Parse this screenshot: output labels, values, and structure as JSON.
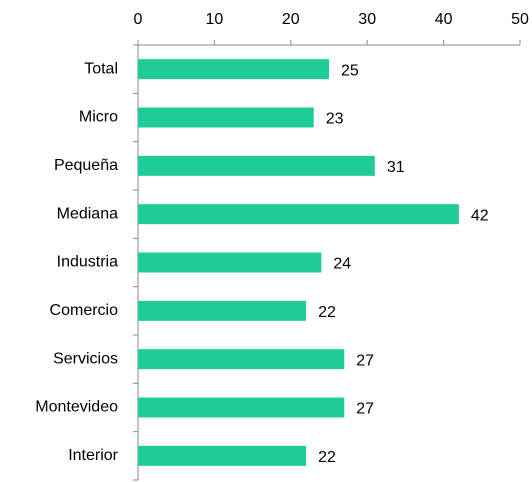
{
  "chart_data": {
    "type": "bar",
    "orientation": "horizontal",
    "categories": [
      "Total",
      "Micro",
      "Pequeña",
      "Mediana",
      "Industria",
      "Comercio",
      "Servicios",
      "Montevideo",
      "Interior"
    ],
    "values": [
      25,
      23,
      31,
      42,
      24,
      22,
      27,
      27,
      22
    ],
    "color": "#1fcc97",
    "xlim": [
      0,
      50
    ],
    "xticks": [
      0,
      10,
      20,
      30,
      40,
      50
    ],
    "grid": false
  }
}
